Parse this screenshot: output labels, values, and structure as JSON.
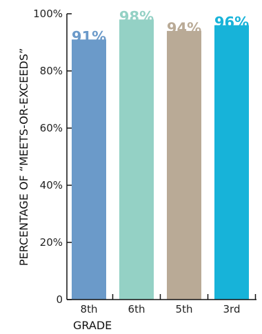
{
  "chart_data": {
    "type": "bar",
    "categories": [
      "8th",
      "6th",
      "5th",
      "3rd"
    ],
    "values": [
      91,
      98,
      94,
      96
    ],
    "data_labels": [
      "91%",
      "98%",
      "94%",
      "96%"
    ],
    "colors": [
      "#6b9ac9",
      "#94d1c5",
      "#b9aa96",
      "#17b3d9"
    ],
    "xlabel": "GRADE",
    "ylabel": "PERCENTAGE OF “MEETS-OR-EXCEEDS”",
    "ylim": [
      0,
      100
    ],
    "yticks": [
      0,
      20,
      40,
      60,
      80,
      100
    ],
    "ytick_labels": [
      "0",
      "20%",
      "40%",
      "60%",
      "80%",
      "100%"
    ],
    "grid": false,
    "legend": "none"
  }
}
